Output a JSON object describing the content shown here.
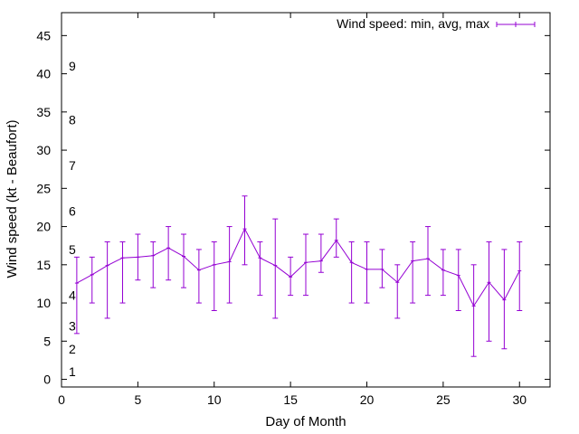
{
  "chart_data": {
    "type": "line",
    "xlabel": "Day of Month",
    "ylabel": "Wind speed (kt - Beaufort)",
    "xlim": [
      0,
      32
    ],
    "ylim": [
      -1,
      48
    ],
    "xticks": [
      0,
      5,
      10,
      15,
      20,
      25,
      30
    ],
    "yticks": [
      0,
      5,
      10,
      15,
      20,
      25,
      30,
      35,
      40,
      45
    ],
    "legend": {
      "position": "top-right",
      "label": "Wind speed: min, avg, max"
    },
    "series_color": "#9400d3",
    "beaufort_labels": [
      {
        "label": "1",
        "y": 1
      },
      {
        "label": "2",
        "y": 4
      },
      {
        "label": "3",
        "y": 7
      },
      {
        "label": "4",
        "y": 11
      },
      {
        "label": "5",
        "y": 17
      },
      {
        "label": "6",
        "y": 22
      },
      {
        "label": "7",
        "y": 28
      },
      {
        "label": "8",
        "y": 34
      },
      {
        "label": "9",
        "y": 41
      }
    ],
    "series": [
      {
        "x": [
          1,
          2,
          3,
          4,
          5,
          6,
          7,
          8,
          9,
          10,
          11,
          12,
          13,
          14,
          15,
          16,
          17,
          18,
          19,
          20,
          21,
          22,
          23,
          24,
          25,
          26,
          27,
          28,
          29,
          30
        ],
        "avg": [
          12.6,
          13.7,
          14.9,
          15.9,
          16.0,
          16.2,
          17.2,
          16.1,
          14.3,
          15.0,
          15.4,
          19.7,
          15.9,
          14.9,
          13.4,
          15.3,
          15.5,
          18.2,
          15.3,
          14.4,
          14.4,
          12.7,
          15.5,
          15.8,
          14.3,
          13.6,
          9.6,
          12.7,
          10.4,
          14.2
        ],
        "min": [
          6,
          10,
          8,
          10,
          13,
          12,
          13,
          12,
          10,
          9,
          10,
          15,
          11,
          8,
          11,
          11,
          14,
          16,
          10,
          10,
          12,
          8,
          10,
          11,
          11,
          9,
          3,
          5,
          4,
          9
        ],
        "max": [
          16,
          16,
          18,
          18,
          19,
          18,
          20,
          19,
          17,
          18,
          20,
          24,
          18,
          21,
          16,
          19,
          19,
          21,
          18,
          18,
          17,
          15,
          18,
          20,
          17,
          17,
          15,
          18,
          17,
          18
        ]
      }
    ]
  }
}
